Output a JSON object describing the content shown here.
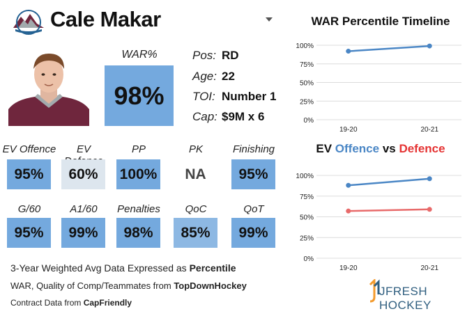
{
  "player": {
    "name": "Cale Makar"
  },
  "war": {
    "label": "WAR%",
    "value": "98%"
  },
  "info": [
    {
      "label": "Pos:",
      "value": "RD"
    },
    {
      "label": "Age:",
      "value": "22"
    },
    {
      "label": "TOI:",
      "value": "Number 1"
    },
    {
      "label": "Cap:",
      "value": "$9M x 6"
    }
  ],
  "stats_row1": [
    {
      "label": "EV Offence",
      "value": "95%",
      "color": "#74a9de"
    },
    {
      "label": "EV Defence",
      "value": "60%",
      "color": "#dde6ee"
    },
    {
      "label": "PP",
      "value": "100%",
      "color": "#74a9de"
    },
    {
      "label": "PK",
      "value": "NA",
      "color": "#ffffff"
    },
    {
      "label": "Finishing",
      "value": "95%",
      "color": "#74a9de"
    }
  ],
  "stats_row2": [
    {
      "label": "G/60",
      "value": "95%",
      "color": "#74a9de"
    },
    {
      "label": "A1/60",
      "value": "99%",
      "color": "#74a9de"
    },
    {
      "label": "Penalties",
      "value": "98%",
      "color": "#74a9de"
    },
    {
      "label": "QoC",
      "value": "85%",
      "color": "#8db8e3"
    },
    {
      "label": "QoT",
      "value": "99%",
      "color": "#74a9de"
    }
  ],
  "footer": {
    "line1": {
      "text": "3-Year Weighted Avg Data Expressed as ",
      "bold": "Percentile"
    },
    "line2": {
      "text": "WAR, Quality of Comp/Teammates from ",
      "bold": "TopDownHockey"
    },
    "line3": {
      "text": "Contract Data from ",
      "bold": "CapFriendly"
    }
  },
  "brand": {
    "text": "JFRESH HOCKEY"
  },
  "chart_data": [
    {
      "type": "line",
      "title": "WAR Percentile Timeline",
      "categories": [
        "19-20",
        "20-21"
      ],
      "series": [
        {
          "name": "WAR",
          "values": [
            92,
            99
          ],
          "color": "#4a86c5"
        }
      ],
      "ylim": [
        0,
        100
      ],
      "yticks": [
        "0%",
        "25%",
        "50%",
        "75%",
        "100%"
      ],
      "xlabel": "",
      "ylabel": ""
    },
    {
      "type": "line",
      "title_parts": [
        {
          "text": "EV ",
          "color": "#111111"
        },
        {
          "text": "Offence",
          "color": "#4a86c5"
        },
        {
          "text": " vs ",
          "color": "#111111"
        },
        {
          "text": "Defence",
          "color": "#e53333"
        }
      ],
      "categories": [
        "19-20",
        "20-21"
      ],
      "series": [
        {
          "name": "Offence",
          "values": [
            88,
            96
          ],
          "color": "#4a86c5"
        },
        {
          "name": "Defence",
          "values": [
            57,
            59
          ],
          "color": "#e86a6a"
        }
      ],
      "ylim": [
        0,
        100
      ],
      "yticks": [
        "0%",
        "25%",
        "50%",
        "75%",
        "100%"
      ],
      "xlabel": "",
      "ylabel": ""
    }
  ]
}
